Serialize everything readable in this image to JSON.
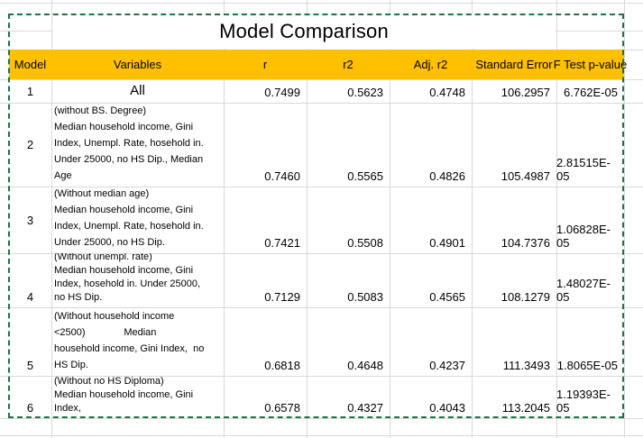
{
  "table": {
    "title": "Model Comparison",
    "columns": [
      "Model",
      "Variables",
      "r",
      "r2",
      "Adj. r2",
      "Standard Error",
      "F Test p-value"
    ],
    "rows": [
      {
        "model": "1",
        "variables": "All",
        "r": "0.7499",
        "r2": "0.5623",
        "adj_r2": "0.4748",
        "standard_error": "106.2957",
        "f_test_p_value": "6.762E-05"
      },
      {
        "model": "2",
        "variables": "(without BS. Degree)\nMedian household income, Gini\nIndex, Unempl. Rate, hosehold in.\nUnder 25000, no HS Dip., Median\nAge",
        "r": "0.7460",
        "r2": "0.5565",
        "adj_r2": "0.4826",
        "standard_error": "105.4987",
        "f_test_p_value": "2.81515E-05"
      },
      {
        "model": "3",
        "variables": "(Without median age)\nMedian household income, Gini\nIndex, Unempl. Rate, hosehold in.\nUnder 25000, no HS Dip.",
        "r": "0.7421",
        "r2": "0.5508",
        "adj_r2": "0.4901",
        "standard_error": "104.7376",
        "f_test_p_value": "1.06828E-05"
      },
      {
        "model": "4",
        "variables": "(Without unempl. rate)\nMedian household income, Gini\nIndex, hosehold in. Under 25000,\nno HS Dip.",
        "r": "0.7129",
        "r2": "0.5083",
        "adj_r2": "0.4565",
        "standard_error": "108.1279",
        "f_test_p_value": "1.48027E-05"
      },
      {
        "model": "5",
        "variables": "(Without household income\n<2500)              Median\nhousehold income, Gini Index,  no\nHS Dip.",
        "r": "0.6818",
        "r2": "0.4648",
        "adj_r2": "0.4237",
        "standard_error": "111.3493",
        "f_test_p_value": "1.8065E-05"
      },
      {
        "model": "6",
        "variables": "(Without no HS Diploma)\nMedian household income, Gini\nIndex,",
        "r": "0.6578",
        "r2": "0.4327",
        "adj_r2": "0.4043",
        "standard_error": "113.2045",
        "f_test_p_value": "1.19393E-05"
      }
    ]
  },
  "colors": {
    "header_background": "#FFC000",
    "selection_border": "#1F7244",
    "gridline": "#D9D9D9",
    "text": "#000000"
  }
}
